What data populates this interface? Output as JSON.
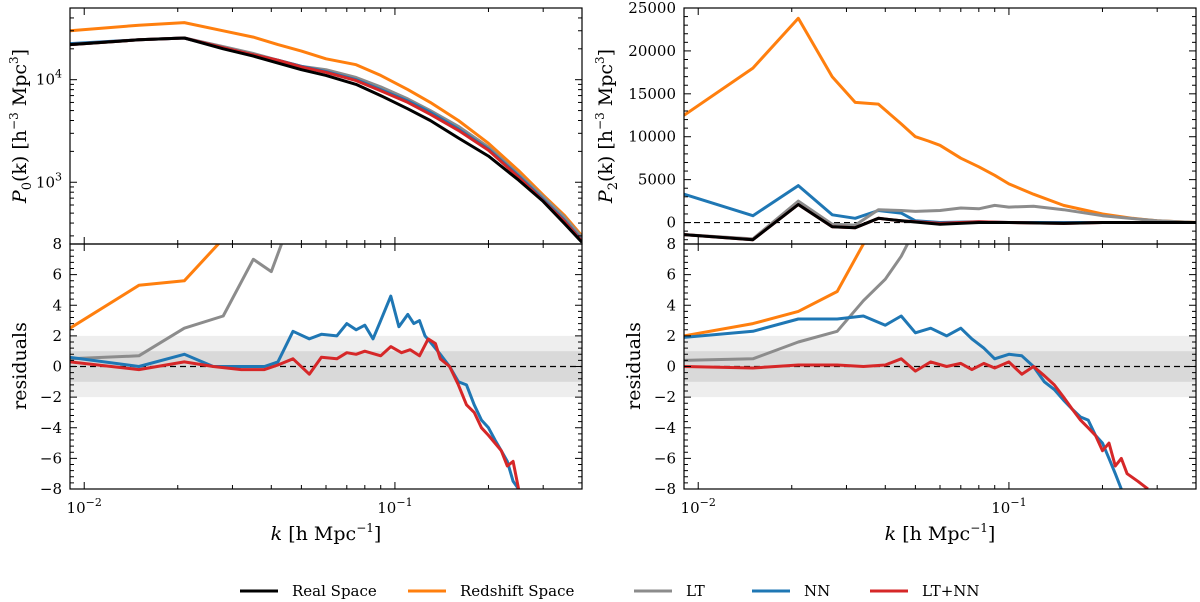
{
  "colors": {
    "real": "#000000",
    "redshift": "#ff7f0e",
    "lt": "#8c8c8c",
    "nn": "#1f77b4",
    "ltnn": "#d62728",
    "band_outer": "#eeeeee",
    "band_inner": "#d9d9d9"
  },
  "legend": [
    {
      "key": "real",
      "label": "Real Space"
    },
    {
      "key": "redshift",
      "label": "Redshift Space"
    },
    {
      "key": "lt",
      "label": "LT"
    },
    {
      "key": "nn",
      "label": "NN"
    },
    {
      "key": "ltnn",
      "label": "LT+NN"
    }
  ],
  "chart_data": [
    {
      "id": "p0",
      "type": "line",
      "xscale": "log",
      "yscale": "log",
      "xlim": [
        0.009,
        0.4
      ],
      "ylim": [
        250,
        50000
      ],
      "ylabel": "P0(k) [h^-3 Mpc^3]",
      "ylabel_main": "P",
      "ylabel_sub": "0",
      "ylabel_rest": "(k) [h",
      "ylabel_exp1": "−3",
      "ylabel_mid": " Mpc",
      "ylabel_exp2": "3",
      "ylabel_end": "]",
      "yticks": [
        {
          "value": 1000,
          "base": "10",
          "exp": "3"
        },
        {
          "value": 10000,
          "base": "10",
          "exp": "4"
        }
      ],
      "series": [
        {
          "key": "redshift",
          "x": [
            0.009,
            0.015,
            0.021,
            0.028,
            0.035,
            0.042,
            0.05,
            0.06,
            0.075,
            0.09,
            0.11,
            0.13,
            0.16,
            0.2,
            0.25,
            0.3,
            0.35,
            0.4
          ],
          "y": [
            30000,
            34000,
            36000,
            30000,
            26000,
            22000,
            19000,
            16000,
            14000,
            11000,
            8000,
            6000,
            4000,
            2400,
            1300,
            750,
            480,
            300
          ]
        },
        {
          "key": "lt",
          "x": [
            0.009,
            0.015,
            0.021,
            0.028,
            0.035,
            0.042,
            0.05,
            0.06,
            0.075,
            0.09,
            0.11,
            0.13,
            0.16,
            0.2,
            0.25,
            0.3,
            0.35,
            0.4
          ],
          "y": [
            22000,
            24500,
            25500,
            21000,
            18000,
            15500,
            13500,
            12500,
            10500,
            8500,
            6500,
            5000,
            3500,
            2200,
            1200,
            720,
            460,
            290
          ]
        },
        {
          "key": "nn",
          "x": [
            0.009,
            0.015,
            0.021,
            0.028,
            0.035,
            0.042,
            0.05,
            0.06,
            0.075,
            0.09,
            0.11,
            0.13,
            0.16,
            0.2,
            0.25,
            0.3,
            0.35,
            0.4
          ],
          "y": [
            22500,
            24500,
            25500,
            20500,
            17500,
            15500,
            13500,
            12000,
            10000,
            8000,
            6200,
            4800,
            3300,
            2100,
            1150,
            680,
            430,
            270
          ]
        },
        {
          "key": "ltnn",
          "x": [
            0.009,
            0.015,
            0.021,
            0.028,
            0.035,
            0.042,
            0.05,
            0.06,
            0.075,
            0.09,
            0.11,
            0.13,
            0.16,
            0.2,
            0.25,
            0.3,
            0.35,
            0.4
          ],
          "y": [
            22000,
            24500,
            25500,
            20500,
            17500,
            15500,
            13300,
            11800,
            9800,
            7800,
            6000,
            4600,
            3200,
            2050,
            1120,
            660,
            420,
            265
          ]
        },
        {
          "key": "real",
          "x": [
            0.009,
            0.015,
            0.021,
            0.028,
            0.035,
            0.042,
            0.05,
            0.06,
            0.075,
            0.09,
            0.11,
            0.13,
            0.16,
            0.2,
            0.25,
            0.3,
            0.35,
            0.4
          ],
          "y": [
            22000,
            24500,
            25500,
            20000,
            17000,
            14500,
            12500,
            11000,
            9000,
            7000,
            5200,
            4000,
            2700,
            1800,
            1050,
            650,
            400,
            260
          ]
        }
      ]
    },
    {
      "id": "p2",
      "type": "line",
      "xscale": "log",
      "yscale": "linear",
      "xlim": [
        0.009,
        0.4
      ],
      "ylim": [
        -2500,
        25000
      ],
      "ylabel": "P2(k) [h^-3 Mpc^3]",
      "ylabel_main": "P",
      "ylabel_sub": "2",
      "ylabel_rest": "(k) [h",
      "ylabel_exp1": "−3",
      "ylabel_mid": " Mpc",
      "ylabel_exp2": "3",
      "ylabel_end": "]",
      "yticks": [
        {
          "value": 0,
          "label": "0"
        },
        {
          "value": 5000,
          "label": "5000"
        },
        {
          "value": 10000,
          "label": "10000"
        },
        {
          "value": 15000,
          "label": "15000"
        },
        {
          "value": 20000,
          "label": "20000"
        },
        {
          "value": 25000,
          "label": "25000"
        }
      ],
      "zero_line": true,
      "series": [
        {
          "key": "redshift",
          "x": [
            0.009,
            0.015,
            0.021,
            0.027,
            0.032,
            0.038,
            0.045,
            0.05,
            0.055,
            0.06,
            0.07,
            0.08,
            0.09,
            0.1,
            0.12,
            0.15,
            0.2,
            0.25,
            0.3,
            0.4
          ],
          "y": [
            12500,
            18000,
            23800,
            17000,
            14000,
            13800,
            11500,
            10000,
            9500,
            9000,
            7500,
            6500,
            5500,
            4500,
            3300,
            2000,
            1000,
            500,
            200,
            0
          ]
        },
        {
          "key": "nn",
          "x": [
            0.009,
            0.015,
            0.021,
            0.027,
            0.032,
            0.038,
            0.045,
            0.05,
            0.06,
            0.08,
            0.1,
            0.15,
            0.2,
            0.3,
            0.4
          ],
          "y": [
            3300,
            800,
            4300,
            900,
            500,
            1400,
            1100,
            200,
            0,
            100,
            0,
            0,
            0,
            0,
            0
          ]
        },
        {
          "key": "lt",
          "x": [
            0.009,
            0.015,
            0.021,
            0.027,
            0.032,
            0.038,
            0.045,
            0.05,
            0.06,
            0.07,
            0.08,
            0.09,
            0.1,
            0.12,
            0.15,
            0.2,
            0.3,
            0.4
          ],
          "y": [
            -1400,
            -1900,
            2500,
            -200,
            -300,
            1500,
            1400,
            1300,
            1400,
            1700,
            1600,
            2000,
            1800,
            1900,
            1500,
            800,
            200,
            0
          ]
        },
        {
          "key": "ltnn",
          "x": [
            0.009,
            0.015,
            0.021,
            0.027,
            0.032,
            0.038,
            0.045,
            0.06,
            0.08,
            0.1,
            0.15,
            0.2,
            0.3,
            0.4
          ],
          "y": [
            -1400,
            -2000,
            2100,
            -500,
            -600,
            500,
            200,
            -100,
            100,
            0,
            -100,
            0,
            0,
            0
          ]
        },
        {
          "key": "real",
          "x": [
            0.009,
            0.015,
            0.021,
            0.027,
            0.032,
            0.038,
            0.045,
            0.06,
            0.08,
            0.1,
            0.15,
            0.2,
            0.3,
            0.4
          ],
          "y": [
            -1400,
            -2000,
            2100,
            -500,
            -600,
            500,
            200,
            -200,
            0,
            0,
            -100,
            0,
            0,
            0
          ]
        }
      ]
    },
    {
      "id": "res0",
      "type": "line",
      "xscale": "log",
      "yscale": "linear",
      "xlim": [
        0.009,
        0.4
      ],
      "ylim": [
        -8,
        8
      ],
      "ylabel": "residuals",
      "xlabel_k": "k",
      "xlabel_rest": " [h Mpc",
      "xlabel_exp": "−1",
      "xlabel_end": "]",
      "yticks": [
        {
          "value": -8,
          "label": "−8"
        },
        {
          "value": -6,
          "label": "−6"
        },
        {
          "value": -4,
          "label": "−4"
        },
        {
          "value": -2,
          "label": "−2"
        },
        {
          "value": 0,
          "label": "0"
        },
        {
          "value": 2,
          "label": "2"
        },
        {
          "value": 4,
          "label": "4"
        },
        {
          "value": 6,
          "label": "6"
        }
      ],
      "top_tick_label": "8",
      "xticks": [
        {
          "value": 0.01,
          "base": "10",
          "exp": "−2"
        },
        {
          "value": 0.1,
          "base": "10",
          "exp": "−1"
        }
      ],
      "bands": [
        2,
        1
      ],
      "zero_line": true,
      "series": [
        {
          "key": "redshift",
          "x": [
            0.009,
            0.015,
            0.021,
            0.03
          ],
          "y": [
            2.5,
            5.3,
            5.6,
            9
          ]
        },
        {
          "key": "lt",
          "x": [
            0.009,
            0.015,
            0.021,
            0.028,
            0.035,
            0.04,
            0.045
          ],
          "y": [
            0.5,
            0.7,
            2.5,
            3.3,
            7.0,
            6.2,
            9
          ]
        },
        {
          "key": "nn",
          "x": [
            0.009,
            0.015,
            0.021,
            0.026,
            0.032,
            0.038,
            0.042,
            0.047,
            0.053,
            0.058,
            0.065,
            0.07,
            0.075,
            0.08,
            0.085,
            0.09,
            0.097,
            0.103,
            0.11,
            0.115,
            0.12,
            0.125,
            0.13,
            0.14,
            0.15,
            0.16,
            0.17,
            0.18,
            0.19,
            0.2,
            0.21,
            0.22,
            0.23,
            0.24,
            0.25
          ],
          "y": [
            0.6,
            0.0,
            0.8,
            0.0,
            0.0,
            0.0,
            0.3,
            2.3,
            1.8,
            2.1,
            2.0,
            2.8,
            2.4,
            2.7,
            1.8,
            3.0,
            4.6,
            2.6,
            3.4,
            2.8,
            3.0,
            2.0,
            1.6,
            0.8,
            0.0,
            -1.0,
            -1.2,
            -2.5,
            -3.5,
            -4.0,
            -4.8,
            -5.5,
            -6.2,
            -7.5,
            -8
          ]
        },
        {
          "key": "ltnn",
          "x": [
            0.009,
            0.015,
            0.021,
            0.026,
            0.032,
            0.038,
            0.042,
            0.047,
            0.053,
            0.058,
            0.065,
            0.07,
            0.075,
            0.08,
            0.09,
            0.097,
            0.105,
            0.112,
            0.12,
            0.128,
            0.135,
            0.14,
            0.15,
            0.16,
            0.17,
            0.18,
            0.19,
            0.2,
            0.21,
            0.22,
            0.23,
            0.24,
            0.25
          ],
          "y": [
            0.3,
            -0.2,
            0.3,
            0.0,
            -0.2,
            -0.2,
            0.1,
            0.5,
            -0.5,
            0.6,
            0.5,
            0.9,
            0.8,
            1.0,
            0.7,
            1.3,
            0.9,
            1.1,
            0.7,
            1.8,
            1.5,
            0.5,
            0.0,
            -1.2,
            -2.5,
            -3.0,
            -4.0,
            -4.5,
            -5.0,
            -5.5,
            -6.5,
            -6.2,
            -8
          ]
        }
      ]
    },
    {
      "id": "res2",
      "type": "line",
      "xscale": "log",
      "yscale": "linear",
      "xlim": [
        0.009,
        0.4
      ],
      "ylim": [
        -8,
        8
      ],
      "ylabel": "residuals",
      "xlabel_k": "k",
      "xlabel_rest": " [h Mpc",
      "xlabel_exp": "−1",
      "xlabel_end": "]",
      "yticks": [
        {
          "value": -8,
          "label": "−8"
        },
        {
          "value": -6,
          "label": "−6"
        },
        {
          "value": -4,
          "label": "−4"
        },
        {
          "value": -2,
          "label": "−2"
        },
        {
          "value": 0,
          "label": "0"
        },
        {
          "value": 2,
          "label": "2"
        },
        {
          "value": 4,
          "label": "4"
        },
        {
          "value": 6,
          "label": "6"
        }
      ],
      "top_tick_label": "8",
      "xticks": [
        {
          "value": 0.01,
          "base": "10",
          "exp": "−2"
        },
        {
          "value": 0.1,
          "base": "10",
          "exp": "−1"
        }
      ],
      "bands": [
        2,
        1
      ],
      "zero_line": true,
      "series": [
        {
          "key": "redshift",
          "x": [
            0.009,
            0.015,
            0.021,
            0.028,
            0.034,
            0.04
          ],
          "y": [
            2.0,
            2.8,
            3.6,
            4.9,
            8.0,
            9.5
          ]
        },
        {
          "key": "lt",
          "x": [
            0.009,
            0.015,
            0.021,
            0.028,
            0.034,
            0.04,
            0.045,
            0.05
          ],
          "y": [
            0.4,
            0.5,
            1.6,
            2.3,
            4.3,
            5.7,
            7.2,
            9
          ]
        },
        {
          "key": "nn",
          "x": [
            0.009,
            0.015,
            0.021,
            0.028,
            0.034,
            0.04,
            0.045,
            0.05,
            0.056,
            0.063,
            0.07,
            0.076,
            0.083,
            0.09,
            0.1,
            0.11,
            0.12,
            0.13,
            0.14,
            0.15,
            0.16,
            0.17,
            0.18,
            0.19,
            0.2,
            0.21,
            0.22,
            0.23
          ],
          "y": [
            1.9,
            2.3,
            3.1,
            3.1,
            3.3,
            2.7,
            3.3,
            2.2,
            2.5,
            2.0,
            2.5,
            1.8,
            1.2,
            0.5,
            0.8,
            0.7,
            0.0,
            -1.0,
            -1.5,
            -2.2,
            -2.8,
            -3.3,
            -3.5,
            -4.5,
            -5.0,
            -6.0,
            -7.0,
            -8
          ]
        },
        {
          "key": "ltnn",
          "x": [
            0.009,
            0.015,
            0.021,
            0.028,
            0.034,
            0.04,
            0.045,
            0.05,
            0.056,
            0.063,
            0.07,
            0.076,
            0.083,
            0.09,
            0.1,
            0.11,
            0.12,
            0.13,
            0.14,
            0.15,
            0.16,
            0.17,
            0.18,
            0.19,
            0.2,
            0.21,
            0.22,
            0.23,
            0.24,
            0.26,
            0.28
          ],
          "y": [
            0.0,
            -0.1,
            0.1,
            0.1,
            0.0,
            0.1,
            0.5,
            -0.3,
            0.3,
            0.0,
            0.2,
            -0.2,
            0.2,
            -0.1,
            0.3,
            -0.5,
            0.0,
            -0.6,
            -1.2,
            -2.0,
            -2.8,
            -3.5,
            -4.0,
            -4.5,
            -5.5,
            -5.0,
            -6.5,
            -6.0,
            -7.0,
            -7.5,
            -8
          ]
        }
      ]
    }
  ]
}
